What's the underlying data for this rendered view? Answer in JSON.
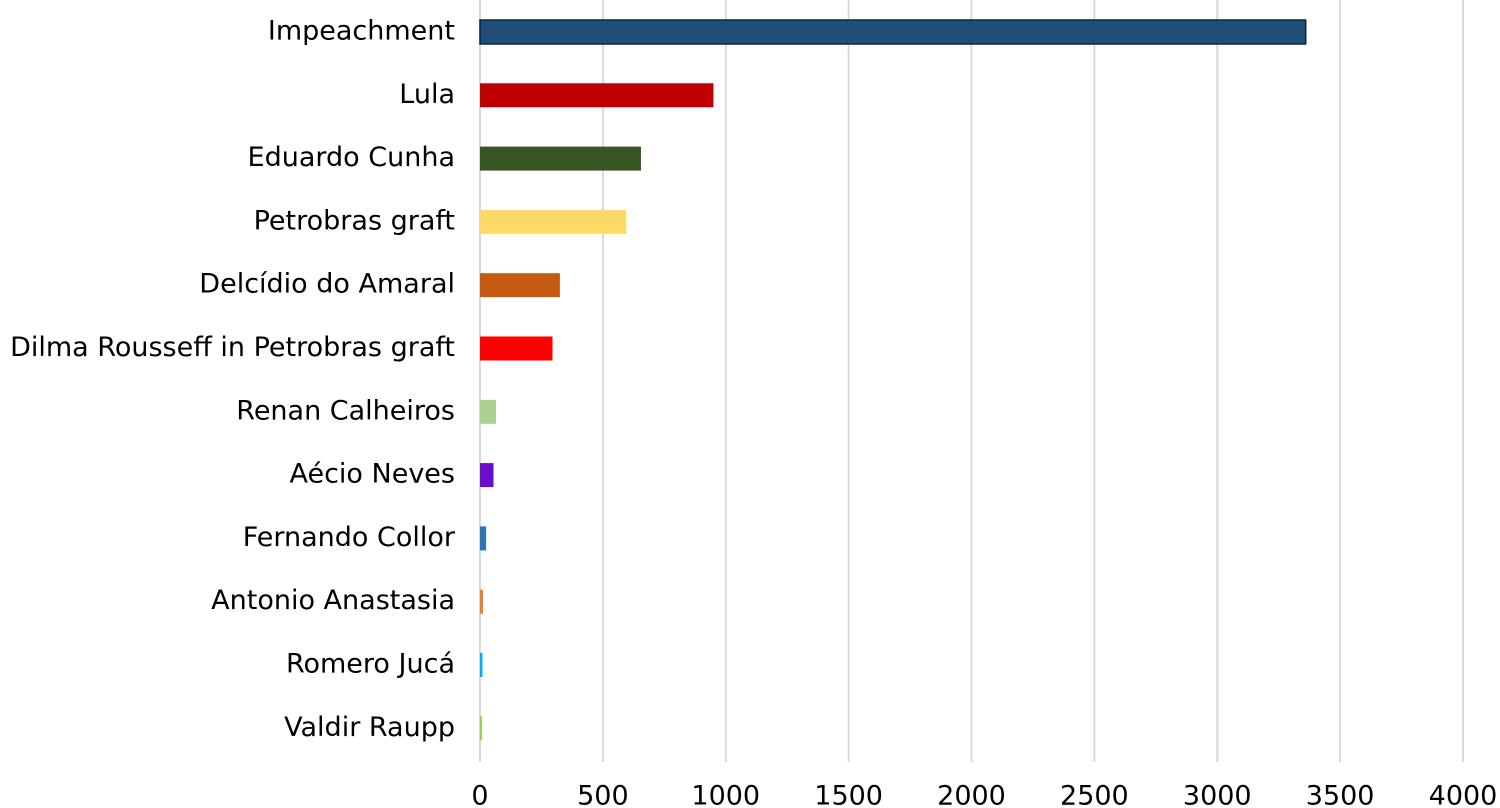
{
  "chart_data": {
    "type": "bar",
    "orientation": "horizontal",
    "categories": [
      "Impeachment",
      "Lula",
      "Eduardo Cunha",
      "Petrobras graft",
      "Delcídio do Amaral",
      "Dilma Rousseff in Petrobras graft",
      "Renan Calheiros",
      "Aécio Neves",
      "Fernando Collor",
      "Antonio Anastasia",
      "Romero Jucá",
      "Valdir Raupp"
    ],
    "values": [
      3360,
      950,
      655,
      595,
      325,
      295,
      65,
      55,
      25,
      12,
      10,
      8
    ],
    "colors": [
      "#1f4e79",
      "#c00000",
      "#375623",
      "#ffd966",
      "#c55a11",
      "#ff0000",
      "#a9d08e",
      "#6a0dcc",
      "#2e75b6",
      "#ed7d31",
      "#00b0f0",
      "#92d050"
    ],
    "xlim": [
      0,
      4000
    ],
    "xticks": [
      0,
      500,
      1000,
      1500,
      2000,
      2500,
      3000,
      3500,
      4000
    ],
    "grid": true,
    "title": "",
    "xlabel": "",
    "ylabel": ""
  }
}
